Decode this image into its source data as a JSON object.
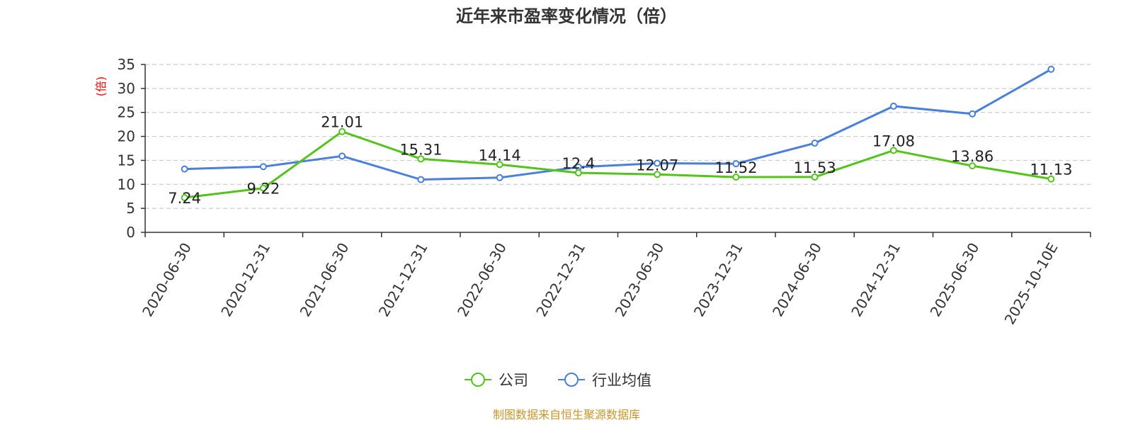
{
  "chart_data": {
    "type": "line",
    "title": "近年来市盈率变化情况（倍）",
    "ylabel": "(倍)",
    "xlabel": "",
    "categories": [
      "2020-06-30",
      "2020-12-31",
      "2021-06-30",
      "2021-12-31",
      "2022-06-30",
      "2022-12-31",
      "2023-06-30",
      "2023-12-31",
      "2024-06-30",
      "2024-12-31",
      "2025-06-30",
      "2025-10-10E"
    ],
    "ylim": [
      0,
      35
    ],
    "yticks": [
      0,
      5,
      10,
      15,
      20,
      25,
      30,
      35
    ],
    "grid": true,
    "legend_position": "bottom-center",
    "series": [
      {
        "name": "公司",
        "color": "#52c41a",
        "values": [
          7.24,
          9.22,
          21.01,
          15.31,
          14.14,
          12.4,
          12.07,
          11.52,
          11.53,
          17.08,
          13.86,
          11.13
        ],
        "labels": [
          "7.24",
          "9.22",
          "21.01",
          "15.31",
          "14.14",
          "12.4",
          "12.07",
          "11.52",
          "11.53",
          "17.08",
          "13.86",
          "11.13"
        ]
      },
      {
        "name": "行业均值",
        "color": "#4a7fdc",
        "values": [
          13.2,
          13.7,
          15.9,
          11.0,
          11.4,
          13.6,
          14.4,
          14.3,
          18.6,
          26.3,
          24.7,
          34.0
        ]
      }
    ],
    "source": "制图数据来自恒生聚源数据库"
  }
}
